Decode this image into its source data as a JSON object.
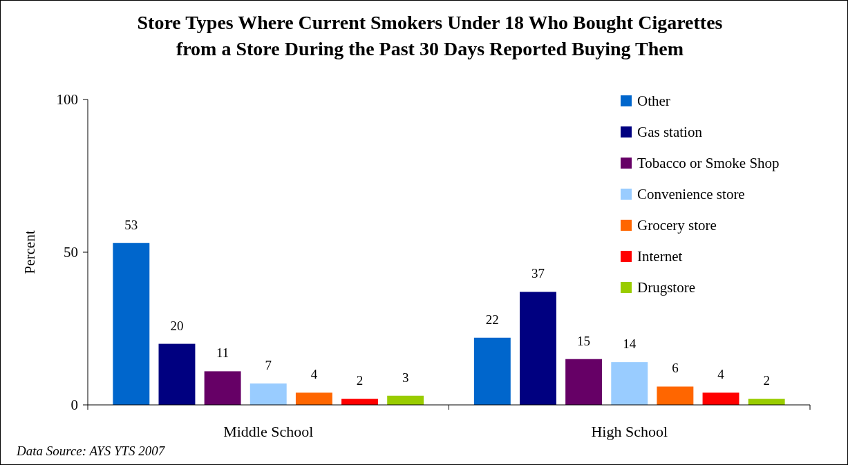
{
  "chart_data": {
    "type": "bar",
    "title": "Store Types Where Current Smokers Under 18 Who Bought Cigarettes\nfrom a Store During the Past 30 Days Reported Buying Them",
    "ylabel": "Percent",
    "categories": [
      "Middle School",
      "High School"
    ],
    "series": [
      {
        "name": "Other",
        "color": "#0066cc",
        "values": [
          53,
          22
        ]
      },
      {
        "name": "Gas station",
        "color": "#000080",
        "values": [
          20,
          37
        ]
      },
      {
        "name": "Tobacco or Smoke Shop",
        "color": "#660066",
        "values": [
          11,
          15
        ]
      },
      {
        "name": "Convenience store",
        "color": "#99ccff",
        "values": [
          7,
          14
        ]
      },
      {
        "name": "Grocery store",
        "color": "#ff6600",
        "values": [
          4,
          6
        ]
      },
      {
        "name": "Internet",
        "color": "#ff0000",
        "values": [
          2,
          4
        ]
      },
      {
        "name": "Drugstore",
        "color": "#99cc00",
        "values": [
          3,
          2
        ]
      }
    ],
    "ylim": [
      0,
      100
    ],
    "yticks": [
      0,
      50,
      100
    ],
    "grid": false,
    "legend": "top right",
    "data_labels": true,
    "annotations": [
      "Data Source: AYS YTS 2007"
    ]
  }
}
